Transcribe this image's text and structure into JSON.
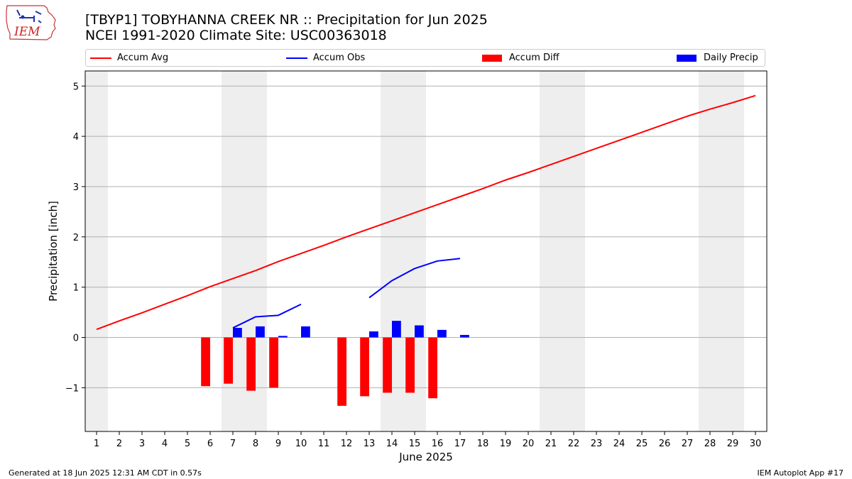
{
  "title_line1": "[TBYP1] TOBYHANNA CREEK NR :: Precipitation for Jun 2025",
  "title_line2": "NCEI 1991-2020 Climate Site: USC00363018",
  "logo_text": "IEM",
  "footer_left": "Generated at 18 Jun 2025 12:31 AM CDT in 0.57s",
  "footer_right": "IEM Autoplot App #17",
  "colors": {
    "avg": "#ff0000",
    "obs": "#0000ff",
    "diff": "#ff0000",
    "daily": "#0000ff",
    "weekend": "#eeeeee"
  },
  "legend": [
    {
      "label": "Accum Avg",
      "kind": "line",
      "color": "#ff0000"
    },
    {
      "label": "Accum Obs",
      "kind": "line",
      "color": "#0000ff"
    },
    {
      "label": "Accum Diff",
      "kind": "box",
      "color": "#ff0000"
    },
    {
      "label": "Daily Precip",
      "kind": "box",
      "color": "#0000ff"
    }
  ],
  "chart_data": {
    "type": "bar",
    "xlabel": "June 2025",
    "ylabel": "Precipitation [inch]",
    "xlim": [
      0.5,
      30.5
    ],
    "ylim": [
      -1.87,
      5.3
    ],
    "yticks": [
      -1,
      0,
      1,
      2,
      3,
      4,
      5
    ],
    "ytick_labels": [
      "−1",
      "0",
      "1",
      "2",
      "3",
      "4",
      "5"
    ],
    "xticks": [
      1,
      2,
      3,
      4,
      5,
      6,
      7,
      8,
      9,
      10,
      11,
      12,
      13,
      14,
      15,
      16,
      17,
      18,
      19,
      20,
      21,
      22,
      23,
      24,
      25,
      26,
      27,
      28,
      29,
      30
    ],
    "grid": "y",
    "weekend_bands": [
      [
        0.5,
        1.5
      ],
      [
        6.5,
        8.5
      ],
      [
        13.5,
        15.5
      ],
      [
        20.5,
        22.5
      ],
      [
        27.5,
        29.5
      ]
    ],
    "series": [
      {
        "name": "Accum Avg",
        "kind": "line",
        "x": [
          1,
          2,
          3,
          4,
          5,
          6,
          7,
          8,
          9,
          10,
          11,
          12,
          13,
          14,
          15,
          16,
          17,
          18,
          19,
          20,
          21,
          22,
          23,
          24,
          25,
          26,
          27,
          28,
          29,
          30
        ],
        "values": [
          0.16,
          0.33,
          0.49,
          0.66,
          0.83,
          1.01,
          1.17,
          1.33,
          1.51,
          1.67,
          1.83,
          2.0,
          2.16,
          2.32,
          2.48,
          2.64,
          2.8,
          2.96,
          3.13,
          3.28,
          3.44,
          3.6,
          3.76,
          3.92,
          4.08,
          4.24,
          4.4,
          4.54,
          4.67,
          4.81
        ]
      },
      {
        "name": "Accum Obs",
        "kind": "line",
        "segments": [
          {
            "x": [
              7,
              8,
              9,
              10
            ],
            "values": [
              0.19,
              0.41,
              0.44,
              0.66
            ]
          },
          {
            "x": [
              13,
              14,
              15,
              16,
              17
            ],
            "values": [
              0.79,
              1.13,
              1.37,
              1.52,
              1.57
            ]
          }
        ]
      },
      {
        "name": "Accum Diff",
        "kind": "bar",
        "offset": -0.2,
        "x": [
          6,
          7,
          8,
          9,
          12,
          13,
          14,
          15,
          16
        ],
        "values": [
          -0.97,
          -0.92,
          -1.06,
          -1.0,
          -1.36,
          -1.17,
          -1.1,
          -1.1,
          -1.21
        ]
      },
      {
        "name": "Daily Precip",
        "kind": "bar",
        "offset": 0.2,
        "x": [
          7,
          8,
          9,
          10,
          13,
          14,
          15,
          16,
          17
        ],
        "values": [
          0.19,
          0.22,
          0.03,
          0.22,
          0.12,
          0.33,
          0.24,
          0.15,
          0.05
        ]
      }
    ]
  }
}
